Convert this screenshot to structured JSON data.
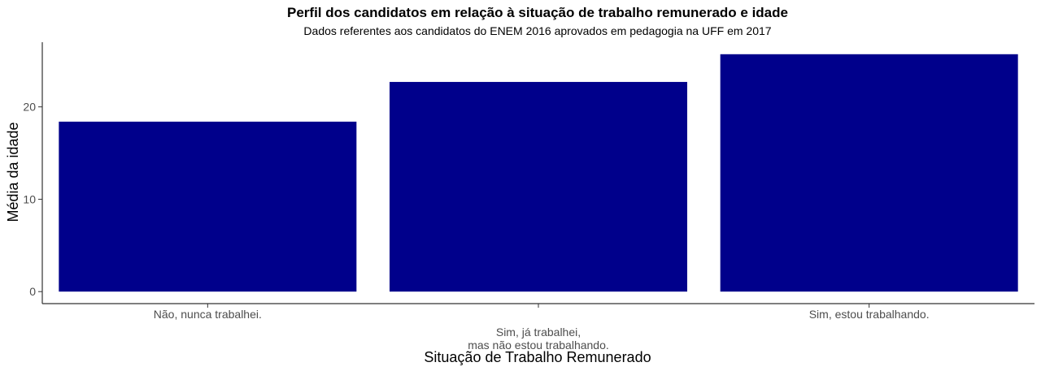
{
  "chart_data": {
    "type": "bar",
    "title": "Perfil dos candidatos em relação à situação de trabalho remunerado e idade",
    "subtitle": "Dados referentes aos candidatos do ENEM 2016 aprovados em pedagogia na UFF em 2017",
    "xlabel": "Situação de Trabalho Remunerado",
    "ylabel": "Média da idade",
    "categories": [
      [
        "Não, nunca trabalhei."
      ],
      [
        "Sim, já trabalhei,",
        "mas não estou trabalhando."
      ],
      [
        "Sim, estou trabalhando."
      ]
    ],
    "values": [
      18.4,
      22.7,
      25.7
    ],
    "ylim": [
      -1.3,
      27.0
    ],
    "yticks": [
      0,
      10,
      20
    ],
    "bar_color": "#00008B",
    "grid": false,
    "legend": "none"
  }
}
